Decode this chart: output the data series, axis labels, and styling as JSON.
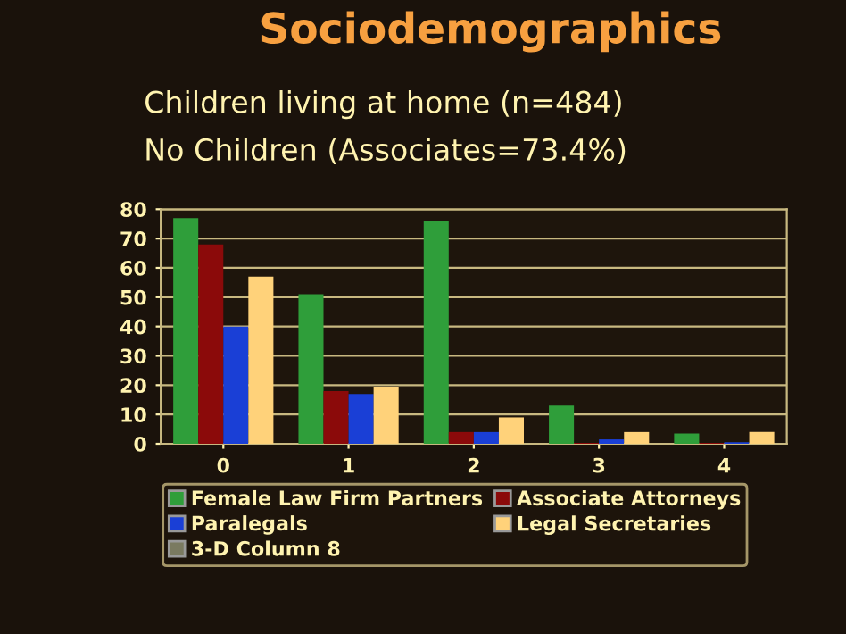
{
  "chart_data": {
    "type": "bar",
    "title": "Sociodemographics",
    "annotations": [
      "Children living at home (n=484)",
      "No Children (Associates=73.4%)"
    ],
    "categories": [
      "0",
      "1",
      "2",
      "3",
      "4"
    ],
    "series": [
      {
        "name": "Female Law Firm Partners",
        "color": "#2f9e3a",
        "values": [
          77,
          51,
          76,
          13,
          3.5
        ]
      },
      {
        "name": "Associate Attorneys",
        "color": "#8b0a0a",
        "values": [
          68,
          18,
          4,
          0.3,
          0.3
        ]
      },
      {
        "name": "Paralegals",
        "color": "#1a3fd6",
        "values": [
          40,
          17,
          4,
          1.5,
          0.5
        ]
      },
      {
        "name": "Legal Secretaries",
        "color": "#ffd27a",
        "values": [
          57,
          19.5,
          9,
          4,
          4
        ]
      },
      {
        "name": "3-D Column 8",
        "color": "#7a7a60",
        "values": [
          null,
          null,
          null,
          null,
          null
        ]
      }
    ],
    "ylim": [
      0,
      80
    ],
    "yticks": [
      0,
      10,
      20,
      30,
      40,
      50,
      60,
      70,
      80
    ],
    "grid": "y",
    "legend": "bottom"
  }
}
